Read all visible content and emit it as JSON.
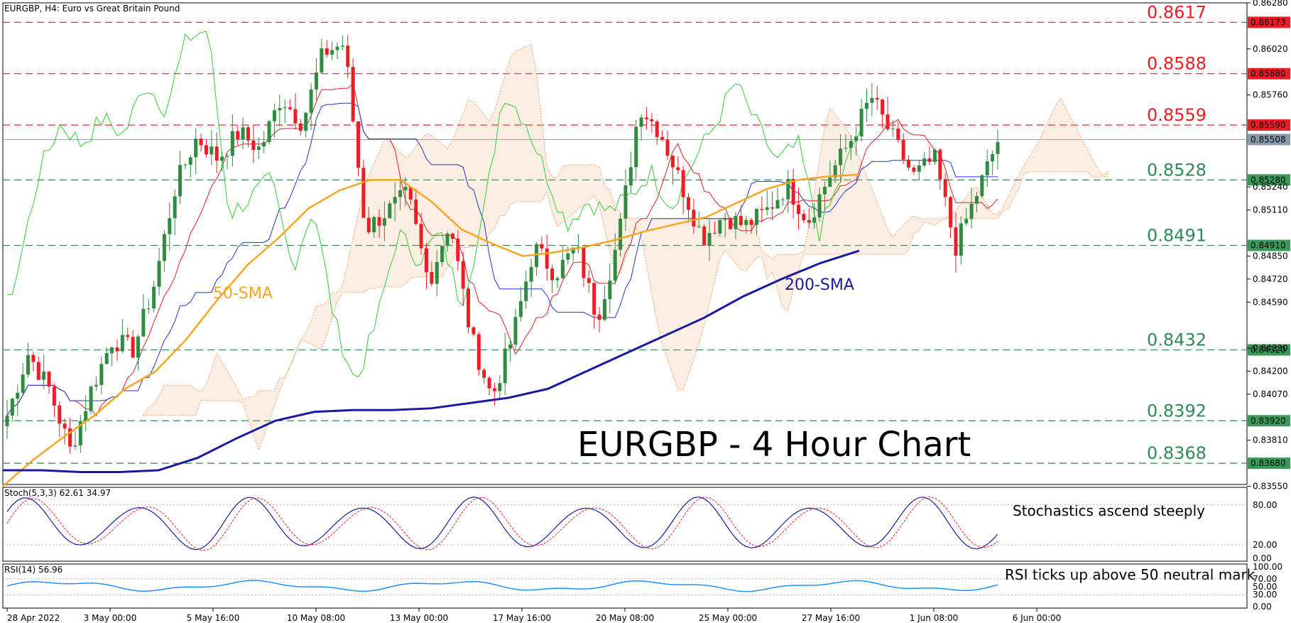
{
  "header": {
    "symbol_line": "EURGBP, H4:  Euro vs Great Britain Pound"
  },
  "chart_data": {
    "type": "candlestick",
    "title": "EURGBP - 4 Hour Chart",
    "ylim": [
      0.8356,
      0.8628
    ],
    "y_ticks": [
      "0.86280",
      "0.86020",
      "0.85760",
      "0.85240",
      "0.85110",
      "0.84850",
      "0.84720",
      "0.84590",
      "0.84330",
      "0.84200",
      "0.84070",
      "0.83810",
      "0.83550"
    ],
    "x_ticks": [
      "28 Apr 2022",
      "3 May 00:00",
      "5 May 16:00",
      "10 May 08:00",
      "13 May 00:00",
      "17 May 16:00",
      "20 May 08:00",
      "25 May 00:00",
      "27 May 16:00",
      "1 Jun 08:00",
      "6 Jun 00:00"
    ],
    "levels": [
      {
        "value": 0.8617,
        "label": "0.8617",
        "tag": "0.86173",
        "color": "#ee1c24",
        "tag_bg": "#ee1c24"
      },
      {
        "value": 0.8588,
        "label": "0.8588",
        "tag": "0.85880",
        "color": "#ee1c24",
        "tag_bg": "#ee1c24"
      },
      {
        "value": 0.8559,
        "label": "0.8559",
        "tag": "0.85590",
        "color": "#ee1c24",
        "tag_bg": "#ee1c24"
      },
      {
        "value": 0.8528,
        "label": "0.8528",
        "tag": "0.85280",
        "color": "#2e8b57",
        "tag_bg": "#3a9a5a"
      },
      {
        "value": 0.8491,
        "label": "0.8491",
        "tag": "0.84910",
        "color": "#2e8b57",
        "tag_bg": "#3a9a5a"
      },
      {
        "value": 0.8432,
        "label": "0.8432",
        "tag": "0.84320",
        "color": "#2e8b57",
        "tag_bg": "#3a9a5a"
      },
      {
        "value": 0.8392,
        "label": "0.8392",
        "tag": "0.83920",
        "color": "#2e8b57",
        "tag_bg": "#3a9a5a"
      },
      {
        "value": 0.8368,
        "label": "0.8368",
        "tag": "0.83680",
        "color": "#2e8b57",
        "tag_bg": "#3a9a5a"
      }
    ],
    "current_price": {
      "value": 0.85508,
      "tag": "0.85508"
    },
    "close_path": [
      0.8395,
      0.843,
      0.841,
      0.8375,
      0.841,
      0.8438,
      0.8432,
      0.847,
      0.8525,
      0.8552,
      0.854,
      0.8555,
      0.8545,
      0.8575,
      0.856,
      0.86,
      0.8605,
      0.85,
      0.851,
      0.852,
      0.847,
      0.8505,
      0.844,
      0.8405,
      0.844,
      0.849,
      0.8475,
      0.849,
      0.845,
      0.8495,
      0.857,
      0.8555,
      0.8525,
      0.8495,
      0.8508,
      0.8502,
      0.851,
      0.8525,
      0.8505,
      0.853,
      0.855,
      0.8575,
      0.8552,
      0.853,
      0.854,
      0.849,
      0.852,
      0.855
    ],
    "sma50": [
      0.8355,
      0.837,
      0.8383,
      0.8395,
      0.841,
      0.842,
      0.8438,
      0.846,
      0.848,
      0.8495,
      0.8512,
      0.8522,
      0.8528,
      0.8528,
      0.8516,
      0.85,
      0.8492,
      0.8485,
      0.8487,
      0.849,
      0.8494,
      0.8499,
      0.8503,
      0.8507,
      0.8515,
      0.8523,
      0.8528,
      0.853,
      0.8531
    ],
    "sma200": [
      0.8364,
      0.8364,
      0.8363,
      0.8363,
      0.8364,
      0.8371,
      0.8382,
      0.8392,
      0.8397,
      0.8398,
      0.8398,
      0.8399,
      0.8402,
      0.8405,
      0.841,
      0.842,
      0.843,
      0.844,
      0.845,
      0.8462,
      0.8472,
      0.8481,
      0.8488
    ],
    "sma50_label": "50-SMA",
    "sma200_label": "200-SMA",
    "stoch": {
      "label": "Stoch(5,3,3) 62.61 34.97",
      "ticks": [
        "80.00",
        "20.00",
        "0.00"
      ],
      "note": "Stochastics ascend steeply"
    },
    "rsi": {
      "label": "RSI(14) 56.96",
      "ticks": [
        "100.00",
        "70.00",
        "50.00",
        "30.00",
        "0.00"
      ],
      "note": "RSI ticks up above 50 neutral mark"
    },
    "colors": {
      "up": "#2e8b40",
      "down": "#ee1c24",
      "sma50": "#f5a623",
      "sma200": "#1a1aa0"
    }
  }
}
